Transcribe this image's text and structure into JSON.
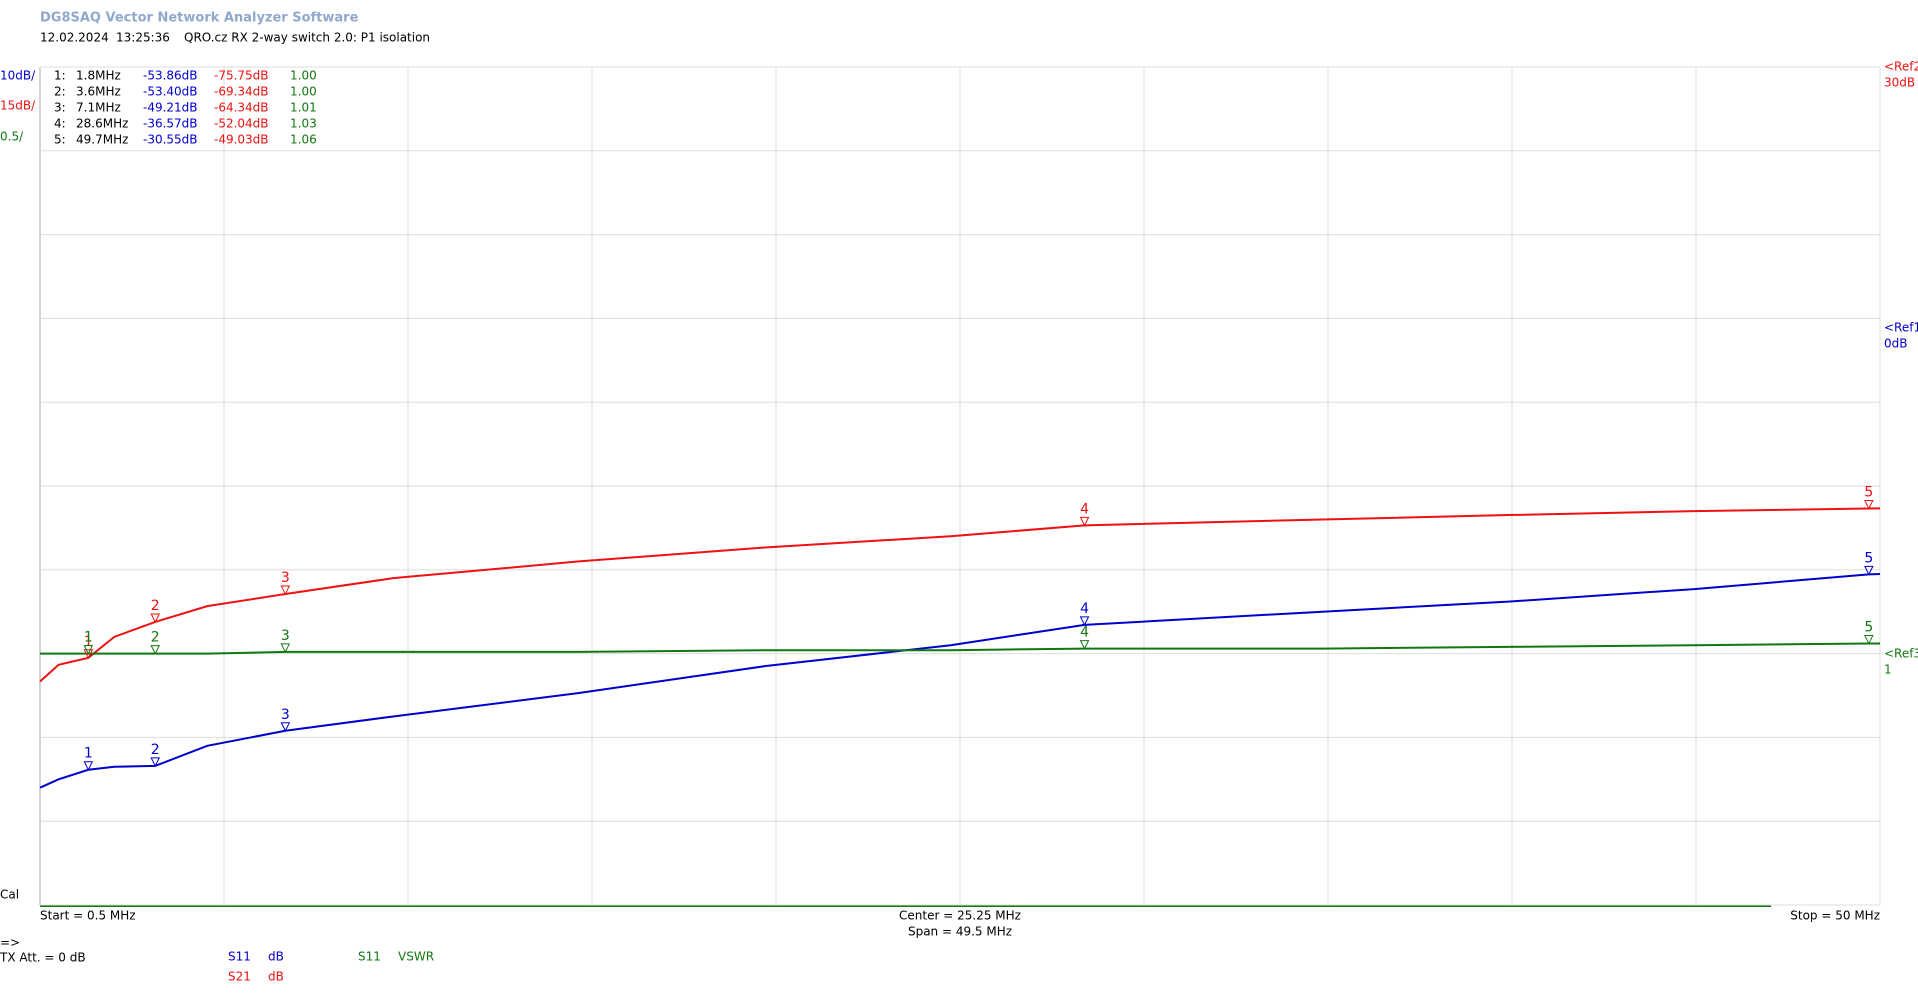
{
  "header": {
    "title": "DG8SAQ Vector Network Analyzer Software",
    "date": "12.02.2024",
    "time": "13:25:36",
    "description": "QRO.cz RX 2-way switch 2.0: P1 isolation"
  },
  "scale_labels": [
    "10dB/",
    "15dB/",
    "0.5/"
  ],
  "refs": [
    {
      "name": "<Ref2",
      "label": "30dB"
    },
    {
      "name": "<Ref1",
      "label": "0dB"
    },
    {
      "name": "<Ref3",
      "label": "1"
    }
  ],
  "markers": [
    {
      "n": "1",
      "row": "1:",
      "x": 1.8,
      "x_label": "1.8MHz",
      "s11": -53.86,
      "s11_label": "-53.86dB",
      "s21": -75.75,
      "s21_label": "-75.75dB",
      "vswr": 1.0,
      "vswr_label": "1.00"
    },
    {
      "n": "2",
      "row": "2:",
      "x": 3.6,
      "x_label": "3.6MHz",
      "s11": -53.4,
      "s11_label": "-53.40dB",
      "s21": -69.34,
      "s21_label": "-69.34dB",
      "vswr": 1.0,
      "vswr_label": "1.00"
    },
    {
      "n": "3",
      "row": "3:",
      "x": 7.1,
      "x_label": "7.1MHz",
      "s11": -49.21,
      "s11_label": "-49.21dB",
      "s21": -64.34,
      "s21_label": "-64.34dB",
      "vswr": 1.01,
      "vswr_label": "1.01"
    },
    {
      "n": "4",
      "row": "4:",
      "x": 28.6,
      "x_label": "28.6MHz",
      "s11": -36.57,
      "s11_label": "-36.57dB",
      "s21": -52.04,
      "s21_label": "-52.04dB",
      "vswr": 1.03,
      "vswr_label": "1.03"
    },
    {
      "n": "5",
      "row": "5:",
      "x": 49.7,
      "x_label": "49.7MHz",
      "s11": -30.55,
      "s11_label": "-30.55dB",
      "s21": -49.03,
      "s21_label": "-49.03dB",
      "vswr": 1.06,
      "vswr_label": "1.06"
    }
  ],
  "footer": {
    "start": "Start = 0.5 MHz",
    "center": "Center = 25.25 MHz",
    "span": "Span = 49.5 MHz",
    "stop": "Stop = 50 MHz",
    "cal": "Cal",
    "arrow": "=>",
    "tx_att": "TX Att. = 0 dB"
  },
  "chart_data": {
    "type": "line",
    "x": [
      0.5,
      1,
      1.8,
      2.5,
      3.6,
      5,
      7.1,
      10,
      15,
      20,
      25,
      28.6,
      35,
      40,
      45,
      49.7,
      50
    ],
    "xlim": [
      0.5,
      50
    ],
    "xticks": [
      0.5,
      5.45,
      10.4,
      15.35,
      20.3,
      25.25,
      30.2,
      35.15,
      40.1,
      45.05,
      50
    ],
    "grid": true,
    "series": [
      {
        "name": "S11",
        "unit": "dB",
        "color": "#0000cc",
        "ylim": [
          -70,
          30
        ],
        "yticks": [
          -70,
          -60,
          -50,
          -40,
          -30,
          -20,
          -10,
          0,
          10,
          20,
          30
        ],
        "values": [
          -56,
          -55,
          -53.86,
          -53.5,
          -53.4,
          -51,
          -49.21,
          -47.5,
          -44.7,
          -41.5,
          -39,
          -36.57,
          -35,
          -33.8,
          -32.3,
          -30.55,
          -30.5
        ]
      },
      {
        "name": "S21",
        "unit": "dB",
        "color": "#ee1111",
        "ylim": [
          -120,
          30
        ],
        "values": [
          -80,
          -77,
          -75.75,
          -72,
          -69.34,
          -66.5,
          -64.34,
          -61.5,
          -58.5,
          -56,
          -54,
          -52.04,
          -51,
          -50.2,
          -49.5,
          -49.03,
          -49
        ]
      },
      {
        "name": "S11",
        "unit": "VSWR",
        "color": "#117711",
        "ylim": [
          -0.5,
          4.5
        ],
        "values": [
          1.0,
          1.0,
          1.0,
          1.0,
          1.0,
          1.0,
          1.01,
          1.01,
          1.01,
          1.02,
          1.02,
          1.03,
          1.03,
          1.04,
          1.05,
          1.06,
          1.06
        ]
      }
    ]
  }
}
